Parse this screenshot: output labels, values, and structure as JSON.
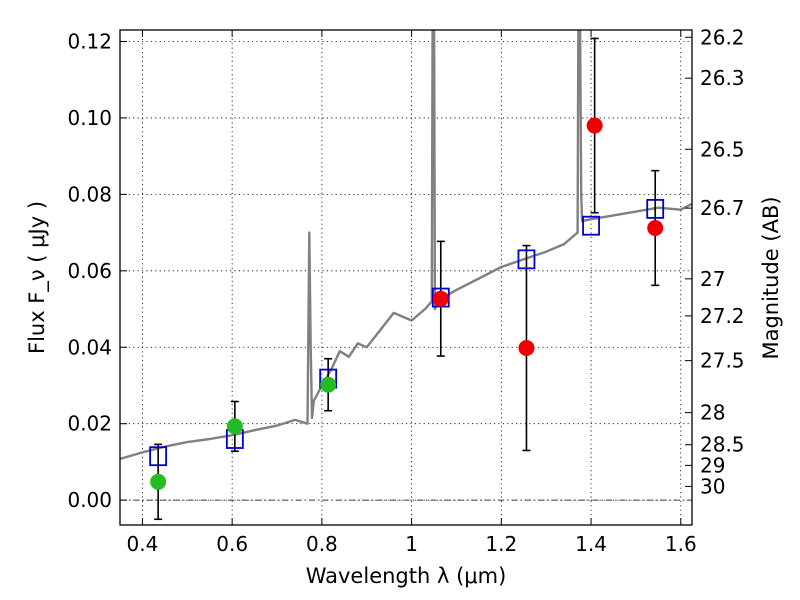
{
  "chart_data": {
    "type": "scatter",
    "xlabel": "Wavelength  λ (μm)",
    "ylabel": "Flux  F_ν  ( μJy )",
    "ylabel_right": "Magnitude (AB)",
    "xlim": [
      0.35,
      1.625
    ],
    "ylim": [
      -0.0065,
      0.123
    ],
    "x_ticks": [
      0.4,
      0.6,
      0.8,
      1.0,
      1.2,
      1.4,
      1.6
    ],
    "x_tick_labels": [
      "0.4",
      "0.6",
      "0.8",
      "1",
      "1.2",
      "1.4",
      "1.6"
    ],
    "y_ticks": [
      0.0,
      0.02,
      0.04,
      0.06,
      0.08,
      0.1,
      0.12
    ],
    "y_tick_labels": [
      "0.00",
      "0.02",
      "0.04",
      "0.06",
      "0.08",
      "0.10",
      "0.12"
    ],
    "right_axis_ticks": [
      {
        "label": "26.2",
        "flux": 0.1211
      },
      {
        "label": "26.3",
        "flux": 0.1104
      },
      {
        "label": "26.5",
        "flux": 0.0918
      },
      {
        "label": "26.7",
        "flux": 0.0764
      },
      {
        "label": "27",
        "flux": 0.0579
      },
      {
        "label": "27.2",
        "flux": 0.0482
      },
      {
        "label": "27.5",
        "flux": 0.0365
      },
      {
        "label": "28",
        "flux": 0.0229
      },
      {
        "label": "28.5",
        "flux": 0.0145
      },
      {
        "label": "29",
        "flux": 0.0091
      },
      {
        "label": "30",
        "flux": 0.0036
      }
    ],
    "grid": true,
    "zero_line": true,
    "colors": {
      "sed": "#808080",
      "model": "#0000cc",
      "optical": "#22bb22",
      "nir": "#ee0000",
      "errorbar": "#000000"
    },
    "sed_curve": {
      "x": [
        0.35,
        0.4,
        0.45,
        0.5,
        0.55,
        0.6,
        0.65,
        0.7,
        0.74,
        0.768,
        0.772,
        0.775,
        0.778,
        0.782,
        0.8,
        0.82,
        0.84,
        0.86,
        0.88,
        0.9,
        0.93,
        0.96,
        1.0,
        1.03,
        1.045,
        1.047,
        1.05,
        1.052,
        1.055,
        1.07,
        1.1,
        1.15,
        1.2,
        1.25,
        1.3,
        1.34,
        1.36,
        1.37,
        1.372,
        1.375,
        1.378,
        1.38,
        1.4,
        1.45,
        1.5,
        1.55,
        1.6,
        1.625
      ],
      "y": [
        0.0108,
        0.0125,
        0.014,
        0.0152,
        0.016,
        0.017,
        0.0183,
        0.0195,
        0.021,
        0.02,
        0.07,
        0.04,
        0.0215,
        0.026,
        0.03,
        0.034,
        0.039,
        0.0375,
        0.041,
        0.04,
        0.0445,
        0.049,
        0.047,
        0.05,
        0.052,
        0.135,
        0.135,
        0.05,
        0.051,
        0.053,
        0.055,
        0.058,
        0.061,
        0.063,
        0.065,
        0.067,
        0.069,
        0.07,
        0.135,
        0.135,
        0.08,
        0.073,
        0.0735,
        0.0745,
        0.0755,
        0.0765,
        0.076,
        0.0775
      ]
    },
    "model_points": {
      "x": [
        0.435,
        0.606,
        0.814,
        1.065,
        1.256,
        1.4,
        1.543
      ],
      "y": [
        0.0115,
        0.016,
        0.0318,
        0.053,
        0.063,
        0.0718,
        0.0762
      ]
    },
    "observed_optical": {
      "x": [
        0.435,
        0.606,
        0.814
      ],
      "y": [
        0.0048,
        0.0193,
        0.0302
      ],
      "yerr": [
        0.0098,
        0.0065,
        0.0068
      ]
    },
    "observed_nir": {
      "x": [
        1.065,
        1.256,
        1.408,
        1.543
      ],
      "y": [
        0.0527,
        0.0398,
        0.098,
        0.0712
      ],
      "yerr": [
        0.015,
        0.0268,
        0.0228,
        0.015
      ]
    }
  }
}
